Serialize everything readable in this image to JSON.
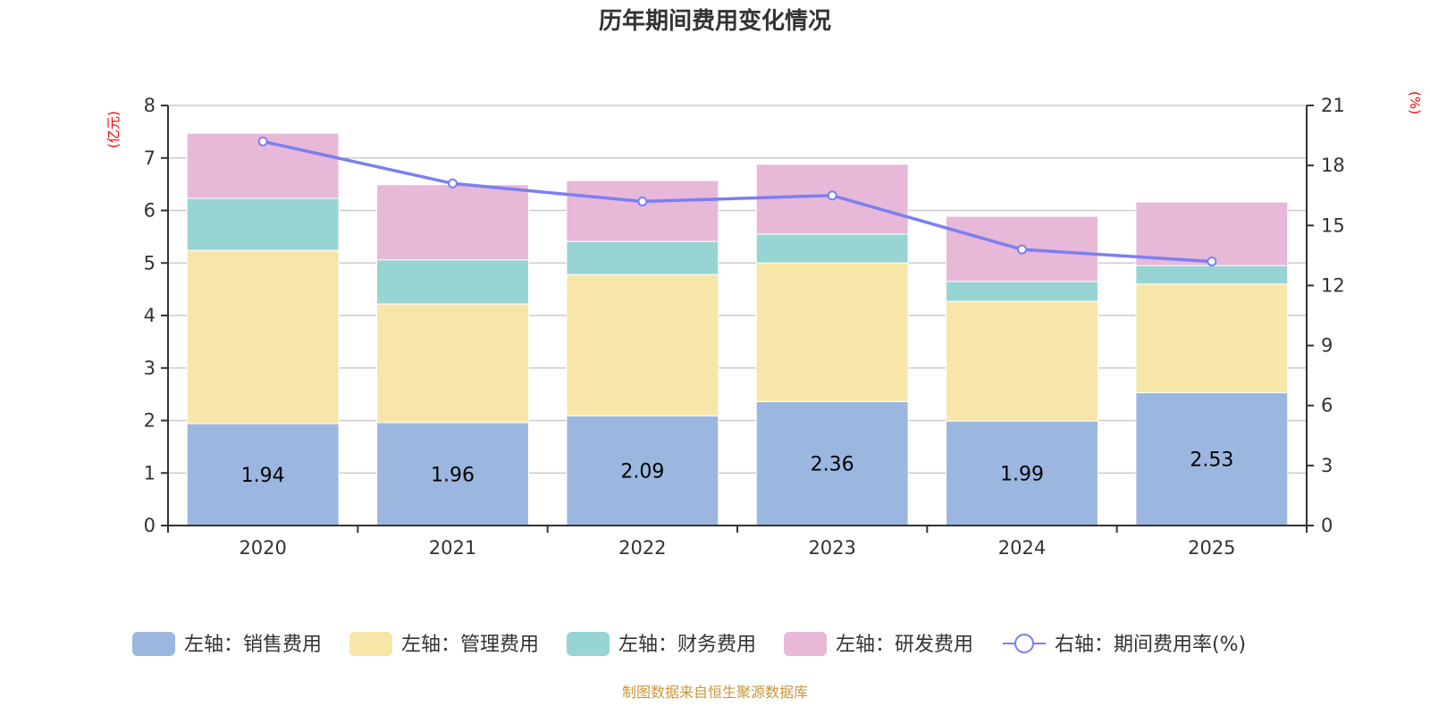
{
  "chart_data": {
    "type": "bar",
    "stacked": true,
    "title": "历年期间费用变化情况",
    "categories": [
      "2020",
      "2021",
      "2022",
      "2023",
      "2024",
      "2025"
    ],
    "left_axis": {
      "unit_label": "(亿元)",
      "ylim": [
        0,
        8
      ],
      "ticks": [
        0,
        1,
        2,
        3,
        4,
        5,
        6,
        7,
        8
      ]
    },
    "right_axis": {
      "unit_label": "(%)",
      "ylim": [
        0,
        21
      ],
      "ticks": [
        0,
        3,
        6,
        9,
        12,
        15,
        18,
        21
      ]
    },
    "grid": true,
    "series": [
      {
        "name": "左轴：销售费用",
        "type": "bar",
        "axis": "left",
        "color": "#9bb7e0",
        "values": [
          1.94,
          1.96,
          2.09,
          2.36,
          1.99,
          2.53
        ],
        "show_labels": true
      },
      {
        "name": "左轴：管理费用",
        "type": "bar",
        "axis": "left",
        "color": "#f8e6a9",
        "values": [
          3.3,
          2.26,
          2.69,
          2.64,
          2.28,
          2.07
        ]
      },
      {
        "name": "左轴：财务费用",
        "type": "bar",
        "axis": "left",
        "color": "#98d4d4",
        "values": [
          0.99,
          0.84,
          0.63,
          0.55,
          0.38,
          0.35
        ]
      },
      {
        "name": "左轴：研发费用",
        "type": "bar",
        "axis": "left",
        "color": "#e7b8d8",
        "values": [
          1.24,
          1.43,
          1.16,
          1.33,
          1.24,
          1.21
        ]
      },
      {
        "name": "右轴：期间费用率(%)",
        "type": "line",
        "axis": "right",
        "color": "#7b7ff0",
        "values": [
          19.2,
          17.1,
          16.2,
          16.5,
          13.8,
          13.2
        ]
      }
    ],
    "legend_position": "bottom",
    "source_note": "制图数据来自恒生聚源数据库"
  }
}
